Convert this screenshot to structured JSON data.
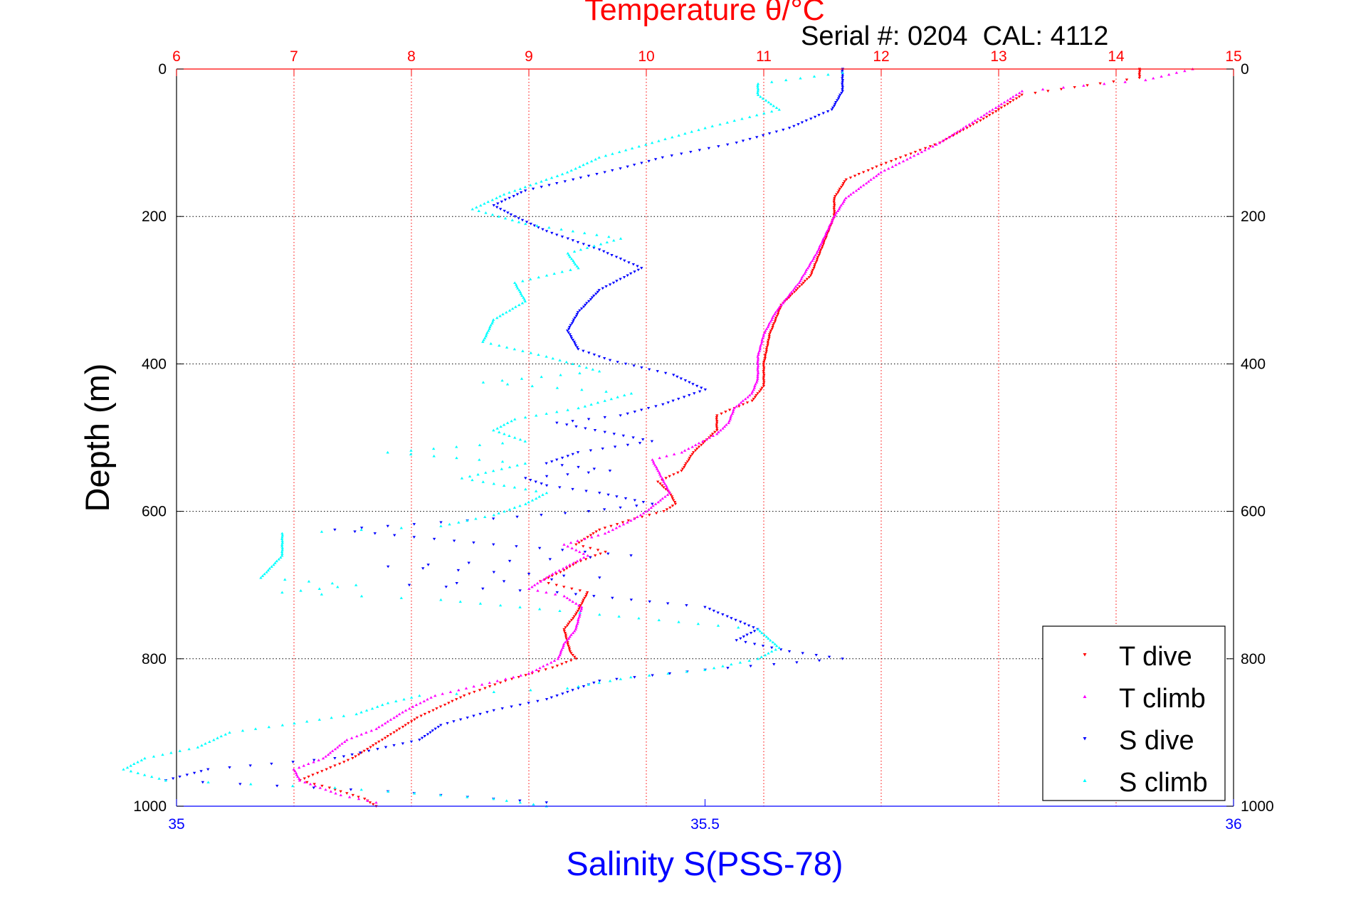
{
  "header": {
    "serial_text": "Serial #: 0204  CAL: 4112"
  },
  "chart_data": {
    "type": "scatter",
    "title": "Temperature θ/°C",
    "xlabel": "Salinity S(PSS-78)",
    "ylabel": "Depth (m)",
    "y_reversed": true,
    "ylim": [
      0,
      1000
    ],
    "yticks": [
      "0",
      "200",
      "400",
      "600",
      "800",
      "1000"
    ],
    "xlim_bottom": [
      35,
      36
    ],
    "xticks_bottom": [
      "35",
      "35.5",
      "36"
    ],
    "xlim_top": [
      6,
      15
    ],
    "xticks_top": [
      "6",
      "7",
      "8",
      "9",
      "10",
      "11",
      "12",
      "13",
      "14",
      "15"
    ],
    "grid": true,
    "legend_position": "bottom-right",
    "colors": {
      "temperature_axis": "#ff0000",
      "salinity_axis": "#0000ff"
    },
    "series": [
      {
        "name": "T dive",
        "axis": "temperature",
        "color": "#ff0000",
        "marker": "triangle-down",
        "points": [
          [
            14.2,
            0
          ],
          [
            14.2,
            12
          ],
          [
            13.2,
            35
          ],
          [
            12.9,
            65
          ],
          [
            12.5,
            100
          ],
          [
            12.0,
            130
          ],
          [
            11.7,
            150
          ],
          [
            11.6,
            175
          ],
          [
            11.6,
            200
          ],
          [
            11.5,
            240
          ],
          [
            11.4,
            280
          ],
          [
            11.15,
            320
          ],
          [
            11.05,
            360
          ],
          [
            11.0,
            400
          ],
          [
            11.0,
            430
          ],
          [
            10.9,
            450
          ],
          [
            10.6,
            470
          ],
          [
            10.6,
            490
          ],
          [
            10.4,
            520
          ],
          [
            10.3,
            545
          ],
          [
            10.1,
            560
          ],
          [
            10.2,
            575
          ],
          [
            10.25,
            590
          ],
          [
            10.15,
            600
          ],
          [
            9.9,
            610
          ],
          [
            9.6,
            625
          ],
          [
            9.4,
            645
          ],
          [
            9.65,
            655
          ],
          [
            9.4,
            670
          ],
          [
            9.3,
            680
          ],
          [
            9.1,
            695
          ],
          [
            9.5,
            710
          ],
          [
            9.4,
            740
          ],
          [
            9.3,
            760
          ],
          [
            9.35,
            790
          ],
          [
            9.4,
            800
          ],
          [
            9.2,
            812
          ],
          [
            8.8,
            830
          ],
          [
            8.45,
            850
          ],
          [
            8.05,
            880
          ],
          [
            7.9,
            895
          ],
          [
            7.7,
            915
          ],
          [
            7.5,
            935
          ],
          [
            7.2,
            955
          ],
          [
            7.05,
            965
          ],
          [
            7.3,
            975
          ],
          [
            7.6,
            990
          ],
          [
            7.7,
            1000
          ]
        ]
      },
      {
        "name": "T climb",
        "axis": "temperature",
        "color": "#ff00ff",
        "marker": "triangle-up",
        "points": [
          [
            14.65,
            0
          ],
          [
            14.25,
            15
          ],
          [
            13.2,
            30
          ],
          [
            12.9,
            60
          ],
          [
            12.5,
            100
          ],
          [
            12.0,
            140
          ],
          [
            11.7,
            175
          ],
          [
            11.6,
            200
          ],
          [
            11.45,
            250
          ],
          [
            11.3,
            290
          ],
          [
            11.1,
            330
          ],
          [
            11.0,
            360
          ],
          [
            10.95,
            390
          ],
          [
            10.95,
            420
          ],
          [
            10.9,
            440
          ],
          [
            10.75,
            460
          ],
          [
            10.7,
            480
          ],
          [
            10.6,
            495
          ],
          [
            10.3,
            520
          ],
          [
            10.05,
            530
          ],
          [
            10.1,
            545
          ],
          [
            10.2,
            575
          ],
          [
            10.0,
            600
          ],
          [
            9.9,
            610
          ],
          [
            9.65,
            630
          ],
          [
            9.3,
            645
          ],
          [
            9.5,
            660
          ],
          [
            9.2,
            685
          ],
          [
            9.0,
            705
          ],
          [
            9.3,
            715
          ],
          [
            9.45,
            730
          ],
          [
            9.4,
            760
          ],
          [
            9.3,
            780
          ],
          [
            9.25,
            800
          ],
          [
            9.0,
            820
          ],
          [
            8.6,
            835
          ],
          [
            8.2,
            850
          ],
          [
            7.95,
            870
          ],
          [
            7.7,
            895
          ],
          [
            7.45,
            910
          ],
          [
            7.25,
            935
          ],
          [
            7.0,
            950
          ],
          [
            7.05,
            965
          ],
          [
            7.4,
            985
          ],
          [
            7.7,
            995
          ]
        ]
      },
      {
        "name": "S dive",
        "axis": "salinity",
        "color": "#0000ff",
        "marker": "triangle-down",
        "points": [
          [
            35.63,
            0
          ],
          [
            35.63,
            15
          ],
          [
            35.63,
            30
          ],
          [
            35.62,
            55
          ],
          [
            35.58,
            80
          ],
          [
            35.53,
            100
          ],
          [
            35.46,
            120
          ],
          [
            35.42,
            135
          ],
          [
            35.33,
            165
          ],
          [
            35.3,
            185
          ],
          [
            35.32,
            200
          ],
          [
            35.35,
            220
          ],
          [
            35.4,
            245
          ],
          [
            35.44,
            270
          ],
          [
            35.4,
            300
          ],
          [
            35.38,
            330
          ],
          [
            35.37,
            355
          ],
          [
            35.38,
            380
          ],
          [
            35.41,
            395
          ],
          [
            35.47,
            415
          ],
          [
            35.5,
            435
          ],
          [
            35.46,
            455
          ],
          [
            35.42,
            470
          ],
          [
            35.36,
            480
          ],
          [
            35.45,
            505
          ],
          [
            35.38,
            520
          ],
          [
            35.35,
            535
          ],
          [
            35.41,
            545
          ],
          [
            35.33,
            555
          ],
          [
            35.35,
            565
          ],
          [
            35.4,
            575
          ],
          [
            35.45,
            590
          ],
          [
            35.39,
            600
          ],
          [
            35.3,
            610
          ],
          [
            35.15,
            625
          ],
          [
            35.3,
            645
          ],
          [
            35.43,
            660
          ],
          [
            35.2,
            675
          ],
          [
            35.4,
            690
          ],
          [
            35.22,
            700
          ],
          [
            35.36,
            710
          ],
          [
            35.5,
            730
          ],
          [
            35.55,
            760
          ],
          [
            35.53,
            775
          ],
          [
            35.58,
            790
          ],
          [
            35.63,
            800
          ],
          [
            35.5,
            815
          ],
          [
            35.4,
            830
          ],
          [
            35.35,
            855
          ],
          [
            35.3,
            870
          ],
          [
            35.25,
            890
          ],
          [
            35.23,
            910
          ],
          [
            35.15,
            935
          ],
          [
            35.03,
            950
          ],
          [
            34.99,
            965
          ],
          [
            35.2,
            980
          ],
          [
            35.35,
            995
          ]
        ]
      },
      {
        "name": "S climb",
        "axis": "salinity",
        "color": "#00ffff",
        "marker": "triangle-up",
        "points": [
          [
            35.63,
            5
          ],
          [
            35.55,
            20
          ],
          [
            35.55,
            35
          ],
          [
            35.57,
            55
          ],
          [
            35.5,
            80
          ],
          [
            35.45,
            100
          ],
          [
            35.4,
            120
          ],
          [
            35.37,
            140
          ],
          [
            35.31,
            170
          ],
          [
            35.28,
            190
          ],
          [
            35.33,
            210
          ],
          [
            35.42,
            230
          ],
          [
            35.37,
            250
          ],
          [
            35.38,
            270
          ],
          [
            35.32,
            290
          ],
          [
            35.33,
            315
          ],
          [
            35.3,
            340
          ],
          [
            35.29,
            370
          ],
          [
            35.35,
            390
          ],
          [
            35.4,
            410
          ],
          [
            35.29,
            425
          ],
          [
            35.43,
            440
          ],
          [
            35.38,
            460
          ],
          [
            35.32,
            475
          ],
          [
            35.3,
            490
          ],
          [
            35.33,
            505
          ],
          [
            35.2,
            520
          ],
          [
            35.33,
            535
          ],
          [
            35.27,
            555
          ],
          [
            35.35,
            575
          ],
          [
            35.33,
            590
          ],
          [
            35.3,
            605
          ],
          [
            35.25,
            620
          ],
          [
            35.1,
            630
          ],
          [
            35.1,
            660
          ],
          [
            35.08,
            690
          ],
          [
            35.17,
            700
          ],
          [
            35.1,
            710
          ],
          [
            35.25,
            720
          ],
          [
            35.4,
            740
          ],
          [
            35.55,
            760
          ],
          [
            35.57,
            785
          ],
          [
            35.55,
            800
          ],
          [
            35.5,
            815
          ],
          [
            35.43,
            825
          ],
          [
            35.37,
            840
          ],
          [
            35.23,
            850
          ],
          [
            35.2,
            860
          ],
          [
            35.17,
            875
          ],
          [
            35.1,
            890
          ],
          [
            35.05,
            900
          ],
          [
            35.02,
            920
          ],
          [
            34.97,
            935
          ],
          [
            34.95,
            950
          ],
          [
            34.99,
            965
          ],
          [
            35.15,
            975
          ],
          [
            35.3,
            990
          ],
          [
            35.35,
            1000
          ]
        ]
      }
    ]
  }
}
